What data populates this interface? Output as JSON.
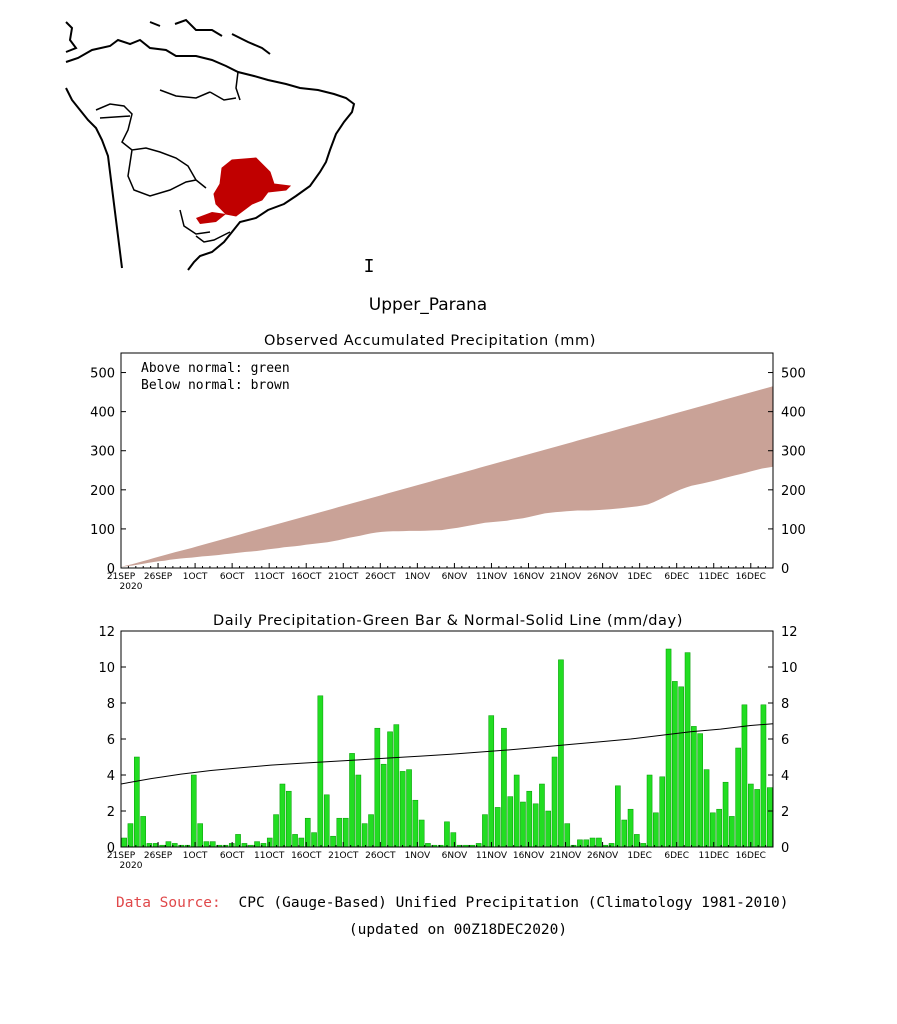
{
  "region_title": "Upper_Parana",
  "map": {
    "highlight_color": "#c00000",
    "land_outline_color": "#000000",
    "cursor_glyph": "I"
  },
  "footer": {
    "source_label": "Data Source:",
    "source_label_color": "#e0484a",
    "source_text": "CPC (Gauge-Based) Unified Precipitation (Climatology 1981-2010)",
    "updated": "(updated on 00Z18DEC2020)"
  },
  "chart_data": [
    {
      "type": "area",
      "title": "Observed Accumulated Precipitation (mm)",
      "legend": [
        "Above normal: green",
        "Below normal: brown"
      ],
      "xlabel": "",
      "ylabel": "",
      "ylim": [
        0,
        550
      ],
      "yticks": [
        0,
        100,
        200,
        300,
        400,
        500
      ],
      "x_tick_labels": [
        "21SEP",
        "26SEP",
        "1OCT",
        "6OCT",
        "11OCT",
        "16OCT",
        "21OCT",
        "26OCT",
        "1NOV",
        "6NOV",
        "11NOV",
        "16NOV",
        "21NOV",
        "26NOV",
        "1DEC",
        "6DEC",
        "11DEC",
        "16DEC"
      ],
      "x_tick_sublabel": "2020",
      "colors": {
        "below": "#c9a297",
        "above": "#00dc00"
      },
      "days": [
        0,
        5,
        10,
        15,
        20,
        25,
        30,
        35,
        40,
        45,
        50,
        55,
        60,
        65,
        70,
        75,
        80,
        85,
        90,
        95,
        100,
        105,
        110,
        115,
        120,
        125,
        130,
        135,
        140,
        145,
        150,
        155,
        160,
        165,
        170,
        175,
        180,
        185,
        190,
        195,
        200,
        205,
        210,
        215,
        220,
        225,
        230,
        235,
        240,
        245,
        250,
        255,
        260,
        265,
        270,
        275,
        280,
        285,
        290,
        295,
        300,
        305,
        310,
        315,
        320,
        325,
        330,
        335,
        340,
        345,
        350,
        355,
        360,
        365,
        370,
        375,
        380,
        385,
        390,
        395,
        400,
        405,
        410,
        415,
        420,
        425,
        430,
        435
      ],
      "series": [
        {
          "name": "Normal accumulated",
          "values": [
            3,
            10,
            18,
            26,
            34,
            42,
            49,
            57,
            65,
            73,
            81,
            89,
            97,
            105,
            113,
            121,
            129,
            137,
            145,
            153,
            161,
            169,
            177,
            185,
            193,
            201,
            209,
            217,
            225,
            233,
            241,
            249,
            257,
            265,
            273,
            281,
            289,
            297,
            305,
            313,
            321,
            329,
            337,
            345,
            353,
            361,
            369,
            377,
            385,
            393,
            401,
            409,
            417,
            425,
            433,
            441,
            449,
            457,
            465
          ]
        },
        {
          "name": "Observed accumulated",
          "values": [
            3,
            6,
            10,
            15,
            18,
            22,
            25,
            27,
            30,
            32,
            35,
            38,
            41,
            43,
            47,
            50,
            54,
            56,
            60,
            63,
            66,
            71,
            77,
            82,
            88,
            92,
            94,
            94,
            95,
            95,
            96,
            97,
            101,
            105,
            110,
            115,
            118,
            120,
            124,
            128,
            134,
            140,
            143,
            145,
            147,
            147,
            148,
            150,
            152,
            155,
            158,
            163,
            175,
            188,
            200,
            210,
            215,
            221,
            228,
            235,
            241,
            248,
            255,
            259
          ]
        }
      ],
      "days_per_point": 1.2
    },
    {
      "type": "bar",
      "title": "Daily Precipitation-Green Bar & Normal-Solid Line (mm/day)",
      "xlabel": "",
      "ylabel": "",
      "ylim": [
        0,
        12
      ],
      "yticks": [
        0,
        2,
        4,
        6,
        8,
        10,
        12
      ],
      "x_tick_labels": [
        "21SEP",
        "26SEP",
        "1OCT",
        "6OCT",
        "11OCT",
        "16OCT",
        "21OCT",
        "26OCT",
        "1NOV",
        "6NOV",
        "11NOV",
        "16NOV",
        "21NOV",
        "26NOV",
        "1DEC",
        "6DEC",
        "11DEC",
        "16DEC"
      ],
      "x_tick_sublabel": "2020",
      "colors": {
        "bar": "#22dd22",
        "bar_edge": "#009900",
        "normal_line": "#000000"
      },
      "series": [
        {
          "name": "Daily precipitation",
          "values": [
            0.5,
            1.3,
            5.0,
            1.7,
            0.2,
            0.2,
            0.1,
            0.3,
            0.2,
            0.1,
            0.1,
            4.0,
            1.3,
            0.3,
            0.3,
            0.1,
            0.1,
            0.2,
            0.7,
            0.2,
            0.1,
            0.3,
            0.2,
            0.5,
            1.8,
            3.5,
            3.1,
            0.7,
            0.5,
            1.6,
            0.8,
            8.4,
            2.9,
            0.6,
            1.6,
            1.6,
            5.2,
            4.0,
            1.3,
            1.8,
            6.6,
            4.6,
            6.4,
            6.8,
            4.2,
            4.3,
            2.6,
            1.5,
            0.2,
            0.1,
            0.1,
            1.4,
            0.8,
            0.1,
            0.1,
            0.1,
            0.2,
            1.8,
            7.3,
            2.2,
            6.6,
            2.8,
            4.0,
            2.5,
            3.1,
            2.4,
            3.5,
            2.0,
            5.0,
            10.4,
            1.3,
            0.1,
            0.4,
            0.4,
            0.5,
            0.5,
            0.1,
            0.2,
            3.4,
            1.5,
            2.1,
            0.7,
            0.2,
            4.0,
            1.9,
            3.9,
            11.0,
            9.2,
            8.9,
            10.8,
            6.7,
            6.3,
            4.3,
            1.9,
            2.1,
            3.6,
            1.7,
            5.5,
            7.9,
            3.5,
            3.2,
            7.9,
            3.3
          ]
        },
        {
          "name": "Normal",
          "x": [
            0,
            20,
            40,
            60,
            80,
            100,
            120,
            140,
            160,
            180,
            200,
            220,
            240,
            260,
            280,
            300,
            320,
            340,
            360,
            380,
            400,
            420,
            435
          ],
          "values": [
            3.5,
            3.8,
            4.05,
            4.25,
            4.4,
            4.55,
            4.65,
            4.75,
            4.85,
            4.95,
            5.05,
            5.15,
            5.28,
            5.4,
            5.55,
            5.7,
            5.85,
            6.0,
            6.2,
            6.4,
            6.55,
            6.75,
            6.85
          ]
        }
      ]
    }
  ]
}
